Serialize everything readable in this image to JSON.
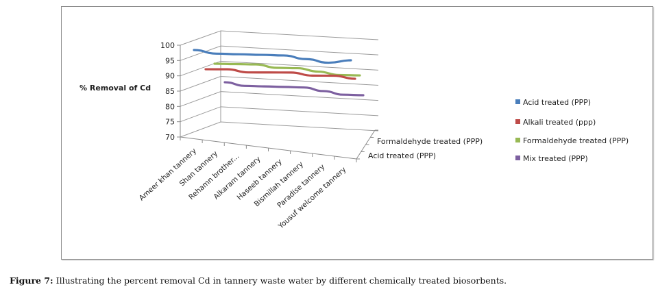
{
  "caption": {
    "label": "Figure 7:",
    "text": " Illustrating the percent removal Cd in tannery waste water by different chemically treated biosorbents."
  },
  "chart_data": {
    "type": "line",
    "variant": "3d-line",
    "title": "",
    "ylabel": "% Removal of Cd",
    "xlabel": "",
    "ylim": [
      70,
      100
    ],
    "yticks": [
      "100",
      "95",
      "90",
      "85",
      "80",
      "75",
      "70"
    ],
    "grid": true,
    "legend_position": "right",
    "categories": [
      "Ameer khan tannery",
      "Shan tannery",
      "Rehamn brother...",
      "Alkaram tannery",
      "Haseeb tannery",
      "Bismillah tannery",
      "Paradise tannery",
      "Yousuf welcome tannery"
    ],
    "depth_axis_labels": [
      "Formaldehyde treated (PPP)",
      "Acid treated (PPP)"
    ],
    "series": [
      {
        "name": "Acid treated (PPP)",
        "color": "#4a7ebb",
        "values": [
          98,
          97,
          97,
          97,
          97,
          96,
          95,
          96
        ]
      },
      {
        "name": "Alkali treated (ppp)",
        "color": "#be4b48",
        "values": [
          91,
          91,
          90,
          90,
          90,
          89,
          89,
          88
        ]
      },
      {
        "name": "Formaldehyde treated (PPP)",
        "color": "#98b954",
        "values": [
          92,
          92,
          92,
          91,
          91,
          90,
          89,
          89
        ]
      },
      {
        "name": "Mix treated (PPP)",
        "color": "#7d60a0",
        "values": [
          87,
          86,
          86,
          86,
          86,
          85,
          84,
          84
        ]
      }
    ]
  }
}
